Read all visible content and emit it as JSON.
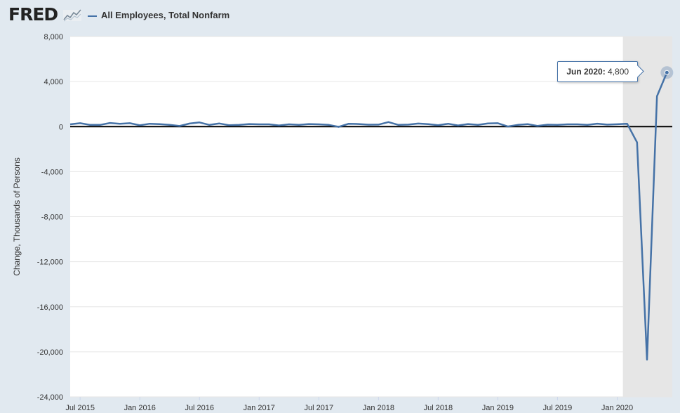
{
  "header": {
    "logo_text": "FRED",
    "logo_mark": "fred-chart-icon",
    "series_label": "All Employees, Total Nonfarm"
  },
  "colors": {
    "series": "#4572a7",
    "page_background": "#e1e9f0",
    "plot_background": "#ffffff",
    "recession_shading": "#e6e6e6",
    "zero_line": "#000000",
    "grid": "#e6e6e6"
  },
  "tooltip": {
    "date_label": "Jun 2020:",
    "value_label": "4,800",
    "x": "2020-06",
    "y": 4800
  },
  "chart_data": {
    "type": "line",
    "title": "",
    "xlabel": "",
    "ylabel": "Change, Thousands of Persons",
    "ylim": [
      -24000,
      8000
    ],
    "xlim": [
      "2015-06",
      "2020-06"
    ],
    "yticks": [
      8000,
      4000,
      0,
      -4000,
      -8000,
      -12000,
      -16000,
      -20000,
      -24000
    ],
    "ytick_labels": [
      "8,000",
      "4,000",
      "0",
      "-4,000",
      "-8,000",
      "-12,000",
      "-16,000",
      "-20,000",
      "-24,000"
    ],
    "xticks": [
      "2015-07",
      "2016-01",
      "2016-07",
      "2017-01",
      "2017-07",
      "2018-01",
      "2018-07",
      "2019-01",
      "2019-07",
      "2020-01"
    ],
    "xtick_labels": [
      "Jul 2015",
      "Jan 2016",
      "Jul 2016",
      "Jan 2017",
      "Jul 2017",
      "Jan 2018",
      "Jul 2018",
      "Jan 2019",
      "Jul 2019",
      "Jan 2020"
    ],
    "grid": true,
    "legend": "top-left",
    "recession_shading": [
      "2020-02",
      "2020-06"
    ],
    "series": [
      {
        "name": "All Employees, Total Nonfarm",
        "x": [
          "2015-06",
          "2015-07",
          "2015-08",
          "2015-09",
          "2015-10",
          "2015-11",
          "2015-12",
          "2016-01",
          "2016-02",
          "2016-03",
          "2016-04",
          "2016-05",
          "2016-06",
          "2016-07",
          "2016-08",
          "2016-09",
          "2016-10",
          "2016-11",
          "2016-12",
          "2017-01",
          "2017-02",
          "2017-03",
          "2017-04",
          "2017-05",
          "2017-06",
          "2017-07",
          "2017-08",
          "2017-09",
          "2017-10",
          "2017-11",
          "2017-12",
          "2018-01",
          "2018-02",
          "2018-03",
          "2018-04",
          "2018-05",
          "2018-06",
          "2018-07",
          "2018-08",
          "2018-09",
          "2018-10",
          "2018-11",
          "2018-12",
          "2019-01",
          "2019-02",
          "2019-03",
          "2019-04",
          "2019-05",
          "2019-06",
          "2019-07",
          "2019-08",
          "2019-09",
          "2019-10",
          "2019-11",
          "2019-12",
          "2020-01",
          "2020-02",
          "2020-03",
          "2020-04",
          "2020-05",
          "2020-06"
        ],
        "values": [
          200,
          300,
          150,
          150,
          320,
          250,
          300,
          120,
          250,
          220,
          150,
          50,
          270,
          370,
          150,
          280,
          120,
          160,
          230,
          200,
          200,
          100,
          200,
          150,
          230,
          200,
          150,
          -20,
          250,
          230,
          170,
          180,
          400,
          150,
          180,
          270,
          220,
          130,
          250,
          100,
          230,
          160,
          280,
          300,
          10,
          150,
          220,
          60,
          170,
          160,
          200,
          200,
          150,
          260,
          180,
          210,
          250,
          -1400,
          -20700,
          2700,
          4800
        ]
      }
    ]
  }
}
